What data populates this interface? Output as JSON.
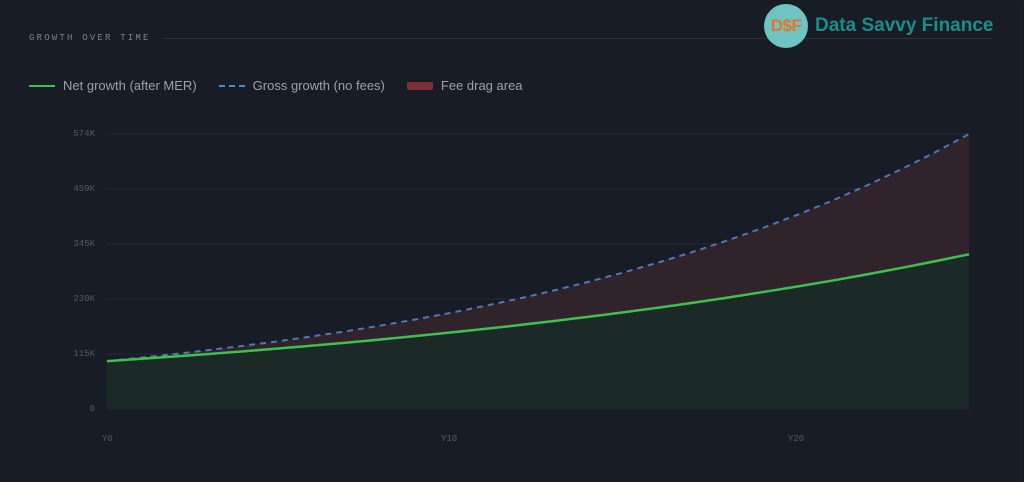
{
  "header": {
    "title": "GROWTH OVER TIME",
    "brand_logo_text": "D$F",
    "brand_name": "Data Savvy Finance"
  },
  "legend": [
    {
      "label": "Net growth (after MER)",
      "style": "solid",
      "color": "#3fbf4f"
    },
    {
      "label": "Gross growth (no fees)",
      "style": "dashed",
      "color": "#4a8ad6"
    },
    {
      "label": "Fee drag area",
      "style": "area",
      "color": "#7a3035"
    }
  ],
  "colors": {
    "background": "#181c24",
    "grid": "#262a33",
    "net_line": "#3fbf4f",
    "net_fill": "#1b2a26",
    "gross_line": "#4d78b8",
    "fee_fill": "#30232a",
    "brand": "#1a8f8a",
    "logo_bg": "#6ec4c0",
    "logo_text": "#e8742a"
  },
  "chart_data": {
    "type": "area",
    "title": "GROWTH OVER TIME",
    "xlabel": "",
    "ylabel": "",
    "x": [
      0,
      1,
      2,
      3,
      4,
      5,
      6,
      7,
      8,
      9,
      10,
      11,
      12,
      13,
      14,
      15,
      16,
      17,
      18,
      19,
      20,
      21,
      22,
      23,
      24,
      25
    ],
    "x_tick_labels": [
      "Y0",
      "Y10",
      "Y20"
    ],
    "x_tick_values": [
      0,
      10,
      20
    ],
    "y_tick_labels": [
      "0",
      "115K",
      "230K",
      "345K",
      "459K",
      "574K"
    ],
    "y_tick_values": [
      0,
      114800,
      229600,
      344400,
      459200,
      574000
    ],
    "ylim": [
      0,
      574000
    ],
    "grid": true,
    "legend_position": "top-left",
    "series": [
      {
        "name": "Net growth (after MER)",
        "style": "solid",
        "values": [
          100000,
          104800,
          109830,
          115100,
          120630,
          126420,
          132490,
          138850,
          145510,
          152500,
          159820,
          167490,
          175530,
          183950,
          192780,
          202040,
          211740,
          221900,
          232550,
          243710,
          255410,
          267670,
          280520,
          293980,
          308090,
          322880
        ]
      },
      {
        "name": "Gross growth (no fees)",
        "style": "dashed",
        "values": [
          100000,
          107240,
          115000,
          123330,
          132260,
          141830,
          152100,
          163110,
          174920,
          187580,
          201160,
          215720,
          231340,
          248090,
          266050,
          285310,
          305970,
          328120,
          351870,
          377350,
          404670,
          433970,
          465390,
          499080,
          535210,
          574000
        ]
      },
      {
        "name": "Fee drag area",
        "style": "area",
        "description": "Region between gross and net curves"
      }
    ]
  }
}
